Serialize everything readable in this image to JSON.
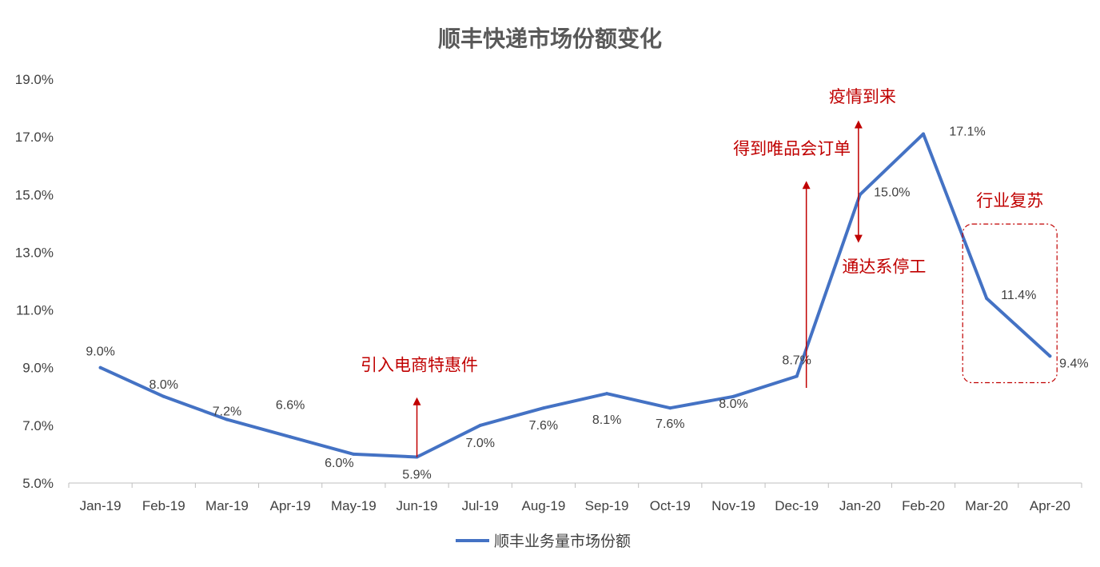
{
  "chart_data": {
    "type": "line",
    "title": "顺丰快递市场份额变化",
    "categories": [
      "Jan-19",
      "Feb-19",
      "Mar-19",
      "Apr-19",
      "May-19",
      "Jun-19",
      "Jul-19",
      "Aug-19",
      "Sep-19",
      "Oct-19",
      "Nov-19",
      "Dec-19",
      "Jan-20",
      "Feb-20",
      "Mar-20",
      "Apr-20"
    ],
    "series": [
      {
        "name": "顺丰业务量市场份额",
        "color": "#4472c4",
        "values": [
          9.0,
          8.0,
          7.2,
          6.6,
          6.0,
          5.9,
          7.0,
          7.6,
          8.1,
          7.6,
          8.0,
          8.7,
          15.0,
          17.1,
          11.4,
          9.4
        ]
      }
    ],
    "data_labels": [
      "9.0%",
      "8.0%",
      "7.2%",
      "6.6%",
      "6.0%",
      "5.9%",
      "7.0%",
      "7.6%",
      "8.1%",
      "7.6%",
      "8.0%",
      "8.7%",
      "15.0%",
      "17.1%",
      "11.4%",
      "9.4%"
    ],
    "y_ticks": [
      "5.0%",
      "7.0%",
      "9.0%",
      "11.0%",
      "13.0%",
      "15.0%",
      "17.0%",
      "19.0%"
    ],
    "ylim": [
      5.0,
      19.0
    ],
    "ytick_values": [
      5,
      7,
      9,
      11,
      13,
      15,
      17,
      19
    ],
    "xlabel": "",
    "ylabel": "",
    "grid": false,
    "legend_position": "bottom",
    "annotations": [
      {
        "text": "引入电商特惠件",
        "category": "Jun-19",
        "arrow": "up",
        "arrow_from": 5.9,
        "arrow_to": 8.0,
        "color": "#c00000"
      },
      {
        "text": "得到唯品会订单",
        "category": "Dec-19",
        "arrow": "up",
        "arrow_from": 8.3,
        "arrow_to": 15.5,
        "color": "#c00000"
      },
      {
        "text": "疫情到来",
        "category": "Jan-20",
        "arrow": "up",
        "arrow_from": 15.0,
        "arrow_to": 17.6,
        "color": "#c00000"
      },
      {
        "text": "通达系停工",
        "category": "Jan-20",
        "arrow": "down",
        "arrow_from": 15.0,
        "arrow_to": 13.3,
        "color": "#c00000"
      },
      {
        "text": "行业复苏",
        "category": "Mar-20",
        "box": "dashed",
        "color": "#c00000"
      }
    ]
  }
}
